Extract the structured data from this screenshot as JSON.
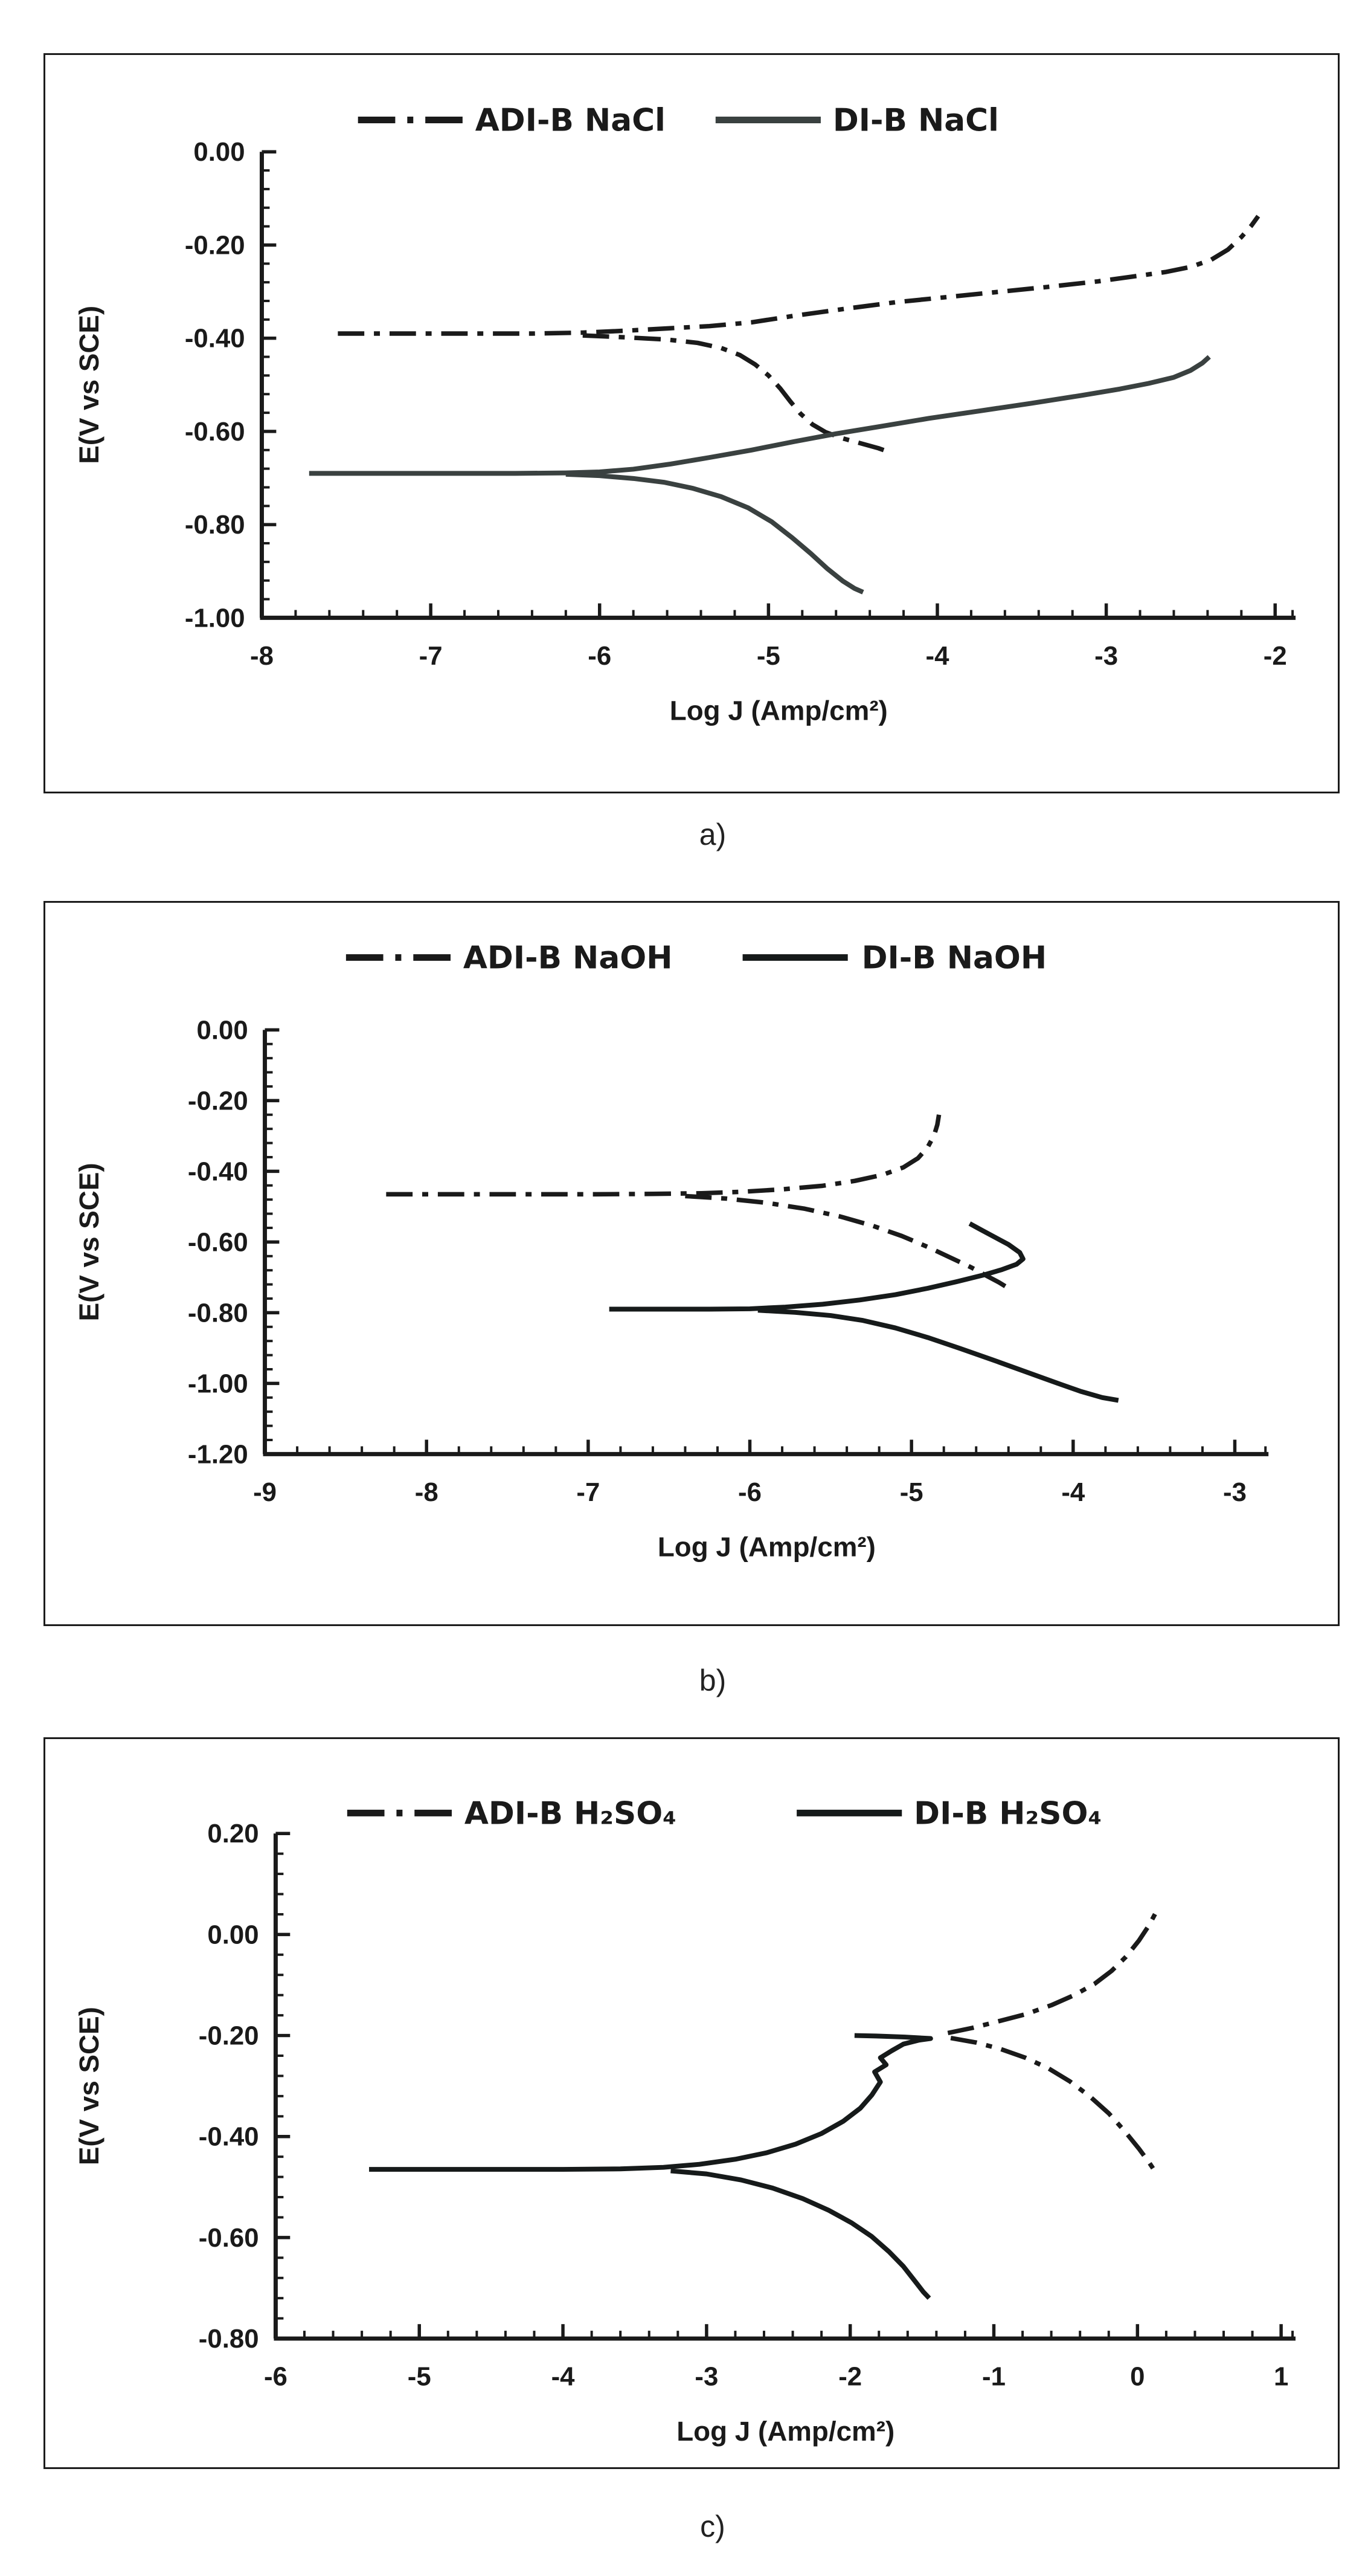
{
  "page": {
    "background": "#ffffff",
    "text_color": "#1a1a1a",
    "panel_captions": [
      "a)",
      "b)",
      "c)"
    ]
  },
  "chart_data": [
    {
      "type": "line",
      "caption": "a)",
      "xlabel": "Log J (Amp/cm²)",
      "ylabel": "E(V vs SCE)",
      "xlim": [
        -8,
        -2
      ],
      "ylim": [
        -1.0,
        0.0
      ],
      "xticks": [
        -8,
        -7,
        -6,
        -5,
        -4,
        -3,
        -2
      ],
      "xtick_labels": [
        "-8",
        "-7",
        "-6",
        "-5",
        "-4",
        "-3",
        "-2"
      ],
      "ytick_values": [
        0,
        -0.2,
        -0.4,
        -0.6,
        -0.8,
        -1.0
      ],
      "ytick_labels": [
        "0.00",
        "-0.20",
        "-0.40",
        "-0.60",
        "-0.80",
        "-1.00"
      ],
      "x_minor_step": 0.2,
      "y_minor_step": 0.04,
      "grid": false,
      "legend_position": "top-center",
      "series": [
        {
          "name": "ADI-B NaCl",
          "line": "dash-dot",
          "color": "#1a1a1a",
          "branches": [
            [
              [
                -7.55,
                -0.39
              ],
              [
                -7.2,
                -0.39
              ],
              [
                -6.8,
                -0.39
              ],
              [
                -6.4,
                -0.39
              ],
              [
                -6.1,
                -0.388
              ],
              [
                -5.85,
                -0.384
              ],
              [
                -5.6,
                -0.379
              ],
              [
                -5.35,
                -0.374
              ],
              [
                -5.1,
                -0.366
              ],
              [
                -4.85,
                -0.352
              ],
              [
                -4.55,
                -0.337
              ],
              [
                -4.25,
                -0.323
              ],
              [
                -3.95,
                -0.312
              ],
              [
                -3.65,
                -0.301
              ],
              [
                -3.35,
                -0.29
              ],
              [
                -3.05,
                -0.278
              ],
              [
                -2.85,
                -0.268
              ],
              [
                -2.65,
                -0.258
              ],
              [
                -2.5,
                -0.247
              ],
              [
                -2.38,
                -0.232
              ],
              [
                -2.28,
                -0.21
              ],
              [
                -2.2,
                -0.183
              ],
              [
                -2.14,
                -0.158
              ],
              [
                -2.1,
                -0.138
              ]
            ],
            [
              [
                -6.1,
                -0.394
              ],
              [
                -5.85,
                -0.398
              ],
              [
                -5.6,
                -0.403
              ],
              [
                -5.42,
                -0.41
              ],
              [
                -5.28,
                -0.421
              ],
              [
                -5.17,
                -0.436
              ],
              [
                -5.08,
                -0.456
              ],
              [
                -5.0,
                -0.48
              ],
              [
                -4.93,
                -0.508
              ],
              [
                -4.87,
                -0.536
              ],
              [
                -4.81,
                -0.562
              ],
              [
                -4.74,
                -0.585
              ],
              [
                -4.66,
                -0.602
              ],
              [
                -4.56,
                -0.615
              ],
              [
                -4.45,
                -0.626
              ],
              [
                -4.35,
                -0.636
              ],
              [
                -4.28,
                -0.645
              ]
            ]
          ]
        },
        {
          "name": "DI-B NaCl",
          "line": "solid",
          "color": "#3a4140",
          "branches": [
            [
              [
                -7.72,
                -0.69
              ],
              [
                -7.3,
                -0.69
              ],
              [
                -6.9,
                -0.69
              ],
              [
                -6.5,
                -0.69
              ],
              [
                -6.2,
                -0.689
              ],
              [
                -6.0,
                -0.687
              ],
              [
                -5.8,
                -0.681
              ],
              [
                -5.58,
                -0.67
              ],
              [
                -5.35,
                -0.656
              ],
              [
                -5.1,
                -0.64
              ],
              [
                -4.85,
                -0.622
              ],
              [
                -4.6,
                -0.605
              ],
              [
                -4.35,
                -0.59
              ],
              [
                -4.05,
                -0.572
              ],
              [
                -3.75,
                -0.556
              ],
              [
                -3.45,
                -0.54
              ],
              [
                -3.15,
                -0.523
              ],
              [
                -2.92,
                -0.509
              ],
              [
                -2.75,
                -0.497
              ],
              [
                -2.6,
                -0.484
              ],
              [
                -2.5,
                -0.469
              ],
              [
                -2.43,
                -0.453
              ],
              [
                -2.39,
                -0.44
              ]
            ],
            [
              [
                -6.2,
                -0.692
              ],
              [
                -6.0,
                -0.695
              ],
              [
                -5.8,
                -0.701
              ],
              [
                -5.62,
                -0.709
              ],
              [
                -5.45,
                -0.722
              ],
              [
                -5.28,
                -0.74
              ],
              [
                -5.12,
                -0.764
              ],
              [
                -4.98,
                -0.794
              ],
              [
                -4.86,
                -0.828
              ],
              [
                -4.75,
                -0.862
              ],
              [
                -4.65,
                -0.895
              ],
              [
                -4.56,
                -0.921
              ],
              [
                -4.49,
                -0.937
              ],
              [
                -4.44,
                -0.945
              ]
            ]
          ]
        }
      ]
    },
    {
      "type": "line",
      "caption": "b)",
      "xlabel": "Log J (Amp/cm²)",
      "ylabel": "E(V vs SCE)",
      "xlim": [
        -9,
        -3
      ],
      "ylim": [
        -1.2,
        0.0
      ],
      "xticks": [
        -9,
        -8,
        -7,
        -6,
        -5,
        -4,
        -3
      ],
      "xtick_labels": [
        "-9",
        "-8",
        "-7",
        "-6",
        "-5",
        "-4",
        "-3"
      ],
      "ytick_values": [
        0,
        -0.2,
        -0.4,
        -0.6,
        -0.8,
        -1.0,
        -1.2
      ],
      "ytick_labels": [
        "0.00",
        "-0.20",
        "-0.40",
        "-0.60",
        "-0.80",
        "-1.00",
        "-1.20"
      ],
      "x_minor_step": 0.2,
      "y_minor_step": 0.04,
      "grid": false,
      "legend_position": "top-center",
      "series": [
        {
          "name": "ADI-B NaOH",
          "line": "dash-dot",
          "color": "#1a1a1a",
          "branches": [
            [
              [
                -8.25,
                -0.465
              ],
              [
                -7.8,
                -0.465
              ],
              [
                -7.35,
                -0.465
              ],
              [
                -6.95,
                -0.465
              ],
              [
                -6.6,
                -0.464
              ],
              [
                -6.3,
                -0.462
              ],
              [
                -6.05,
                -0.458
              ],
              [
                -5.8,
                -0.451
              ],
              [
                -5.55,
                -0.441
              ],
              [
                -5.35,
                -0.427
              ],
              [
                -5.18,
                -0.41
              ],
              [
                -5.05,
                -0.389
              ],
              [
                -4.96,
                -0.363
              ],
              [
                -4.9,
                -0.332
              ],
              [
                -4.86,
                -0.298
              ],
              [
                -4.84,
                -0.268
              ],
              [
                -4.83,
                -0.24
              ]
            ],
            [
              [
                -6.4,
                -0.47
              ],
              [
                -6.15,
                -0.477
              ],
              [
                -5.9,
                -0.489
              ],
              [
                -5.66,
                -0.506
              ],
              [
                -5.44,
                -0.528
              ],
              [
                -5.24,
                -0.554
              ],
              [
                -5.06,
                -0.583
              ],
              [
                -4.9,
                -0.614
              ],
              [
                -4.76,
                -0.644
              ],
              [
                -4.63,
                -0.672
              ],
              [
                -4.53,
                -0.697
              ],
              [
                -4.46,
                -0.714
              ],
              [
                -4.42,
                -0.725
              ]
            ]
          ]
        },
        {
          "name": "DI-B NaOH",
          "line": "solid",
          "color": "#161a1a",
          "branches": [
            [
              [
                -6.87,
                -0.79
              ],
              [
                -6.55,
                -0.79
              ],
              [
                -6.25,
                -0.79
              ],
              [
                -6.0,
                -0.789
              ],
              [
                -5.78,
                -0.784
              ],
              [
                -5.55,
                -0.776
              ],
              [
                -5.32,
                -0.764
              ],
              [
                -5.1,
                -0.749
              ],
              [
                -4.9,
                -0.731
              ],
              [
                -4.72,
                -0.712
              ],
              [
                -4.56,
                -0.694
              ],
              [
                -4.44,
                -0.678
              ],
              [
                -4.35,
                -0.663
              ],
              [
                -4.31,
                -0.648
              ],
              [
                -4.33,
                -0.63
              ],
              [
                -4.4,
                -0.607
              ],
              [
                -4.49,
                -0.585
              ],
              [
                -4.58,
                -0.563
              ],
              [
                -4.64,
                -0.548
              ]
            ],
            [
              [
                -5.95,
                -0.793
              ],
              [
                -5.72,
                -0.799
              ],
              [
                -5.5,
                -0.808
              ],
              [
                -5.3,
                -0.822
              ],
              [
                -5.1,
                -0.843
              ],
              [
                -4.9,
                -0.87
              ],
              [
                -4.7,
                -0.901
              ],
              [
                -4.5,
                -0.933
              ],
              [
                -4.3,
                -0.966
              ],
              [
                -4.1,
                -0.999
              ],
              [
                -3.95,
                -1.023
              ],
              [
                -3.82,
                -1.04
              ],
              [
                -3.72,
                -1.048
              ]
            ]
          ]
        }
      ]
    },
    {
      "type": "line",
      "caption": "c)",
      "xlabel": "Log J (Amp/cm²)",
      "ylabel": "E(V vs SCE)",
      "xlim": [
        -6,
        1
      ],
      "ylim": [
        -0.8,
        0.2
      ],
      "xticks": [
        -6,
        -5,
        -4,
        -3,
        -2,
        -1,
        0,
        1
      ],
      "xtick_labels": [
        "-6",
        "-5",
        "-4",
        "-3",
        "-2",
        "-1",
        "0",
        "1"
      ],
      "ytick_values": [
        0.2,
        0,
        -0.2,
        -0.4,
        -0.6,
        -0.8
      ],
      "ytick_labels": [
        "0.20",
        "0.00",
        "-0.20",
        "-0.40",
        "-0.60",
        "-0.80"
      ],
      "x_minor_step": 0.2,
      "y_minor_step": 0.04,
      "grid": false,
      "legend_position": "top-center",
      "series": [
        {
          "name": "ADI-B H₂SO₄",
          "line": "dash-dot",
          "color": "#1a1a1a",
          "branches": [
            [
              [
                -1.32,
                -0.195
              ],
              [
                -1.15,
                -0.185
              ],
              [
                -0.97,
                -0.172
              ],
              [
                -0.78,
                -0.158
              ],
              [
                -0.6,
                -0.14
              ],
              [
                -0.44,
                -0.12
              ],
              [
                -0.3,
                -0.098
              ],
              [
                -0.18,
                -0.072
              ],
              [
                -0.08,
                -0.044
              ],
              [
                0.01,
                -0.012
              ],
              [
                0.08,
                0.018
              ],
              [
                0.14,
                0.05
              ]
            ],
            [
              [
                -1.3,
                -0.205
              ],
              [
                -1.12,
                -0.214
              ],
              [
                -0.95,
                -0.227
              ],
              [
                -0.78,
                -0.244
              ],
              [
                -0.62,
                -0.265
              ],
              [
                -0.47,
                -0.291
              ],
              [
                -0.33,
                -0.321
              ],
              [
                -0.2,
                -0.354
              ],
              [
                -0.09,
                -0.389
              ],
              [
                0.01,
                -0.424
              ],
              [
                0.08,
                -0.451
              ],
              [
                0.12,
                -0.468
              ]
            ]
          ]
        },
        {
          "name": "DI-B H₂SO₄",
          "line": "solid",
          "color": "#161a1a",
          "branches": [
            [
              [
                -5.35,
                -0.465
              ],
              [
                -4.9,
                -0.465
              ],
              [
                -4.45,
                -0.465
              ],
              [
                -4.0,
                -0.465
              ],
              [
                -3.6,
                -0.464
              ],
              [
                -3.3,
                -0.461
              ],
              [
                -3.05,
                -0.455
              ],
              [
                -2.8,
                -0.445
              ],
              [
                -2.58,
                -0.432
              ],
              [
                -2.38,
                -0.415
              ],
              [
                -2.2,
                -0.394
              ],
              [
                -2.05,
                -0.37
              ],
              [
                -1.93,
                -0.344
              ],
              [
                -1.85,
                -0.318
              ],
              [
                -1.79,
                -0.292
              ],
              [
                -1.83,
                -0.272
              ],
              [
                -1.75,
                -0.258
              ],
              [
                -1.79,
                -0.244
              ],
              [
                -1.71,
                -0.23
              ],
              [
                -1.63,
                -0.217
              ],
              [
                -1.52,
                -0.209
              ],
              [
                -1.44,
                -0.206
              ],
              [
                -1.62,
                -0.203
              ],
              [
                -1.82,
                -0.201
              ],
              [
                -1.97,
                -0.2
              ]
            ],
            [
              [
                -3.25,
                -0.468
              ],
              [
                -3.0,
                -0.474
              ],
              [
                -2.76,
                -0.486
              ],
              [
                -2.54,
                -0.502
              ],
              [
                -2.33,
                -0.523
              ],
              [
                -2.15,
                -0.546
              ],
              [
                -1.99,
                -0.571
              ],
              [
                -1.85,
                -0.598
              ],
              [
                -1.73,
                -0.628
              ],
              [
                -1.63,
                -0.657
              ],
              [
                -1.55,
                -0.686
              ],
              [
                -1.49,
                -0.708
              ],
              [
                -1.45,
                -0.72
              ]
            ]
          ]
        }
      ]
    }
  ]
}
